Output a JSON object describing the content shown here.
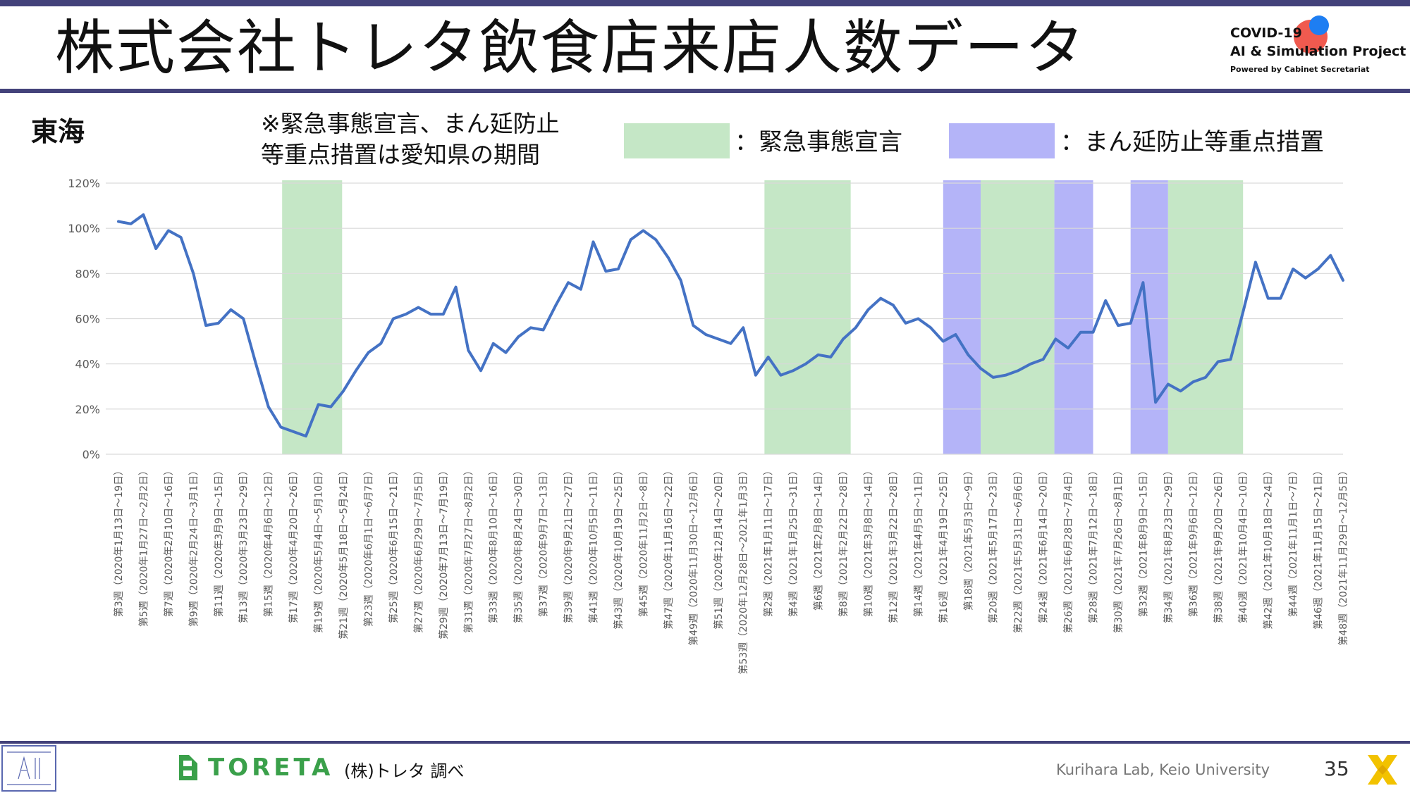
{
  "title": "株式会社トレタ飲食店来店人数データ",
  "logo": {
    "line1": "COVID-19",
    "line2": "AI & Simulation Project",
    "line3": "Powered by Cabinet Secretariat"
  },
  "region": "東海",
  "note": "※緊急事態宣言、まん延防止\n等重点措置は愛知県の期間",
  "legend": {
    "emergency_label": "：緊急事態宣言",
    "emergency_color": "#c5e7c6",
    "manen_label": "：まん延防止等重点措置",
    "manen_color": "#b4b4f8"
  },
  "footer": {
    "toreta": "TORETA",
    "source": "(株)トレタ 調べ",
    "lab": "Kurihara Lab, Keio University",
    "page": "35"
  },
  "chart_data": {
    "type": "line",
    "ylim": [
      0,
      120
    ],
    "yticks": [
      "0%",
      "20%",
      "40%",
      "60%",
      "80%",
      "100%",
      "120%"
    ],
    "line_color": "#4472c4",
    "grid": true,
    "x_labels": [
      "第3週（2020年1月13日～19日）",
      "第5週（2020年1月27日～2月2日）",
      "第7週（2020年2月10日～16日）",
      "第9週（2020年2月24日～3月1日）",
      "第11週（2020年3月9日～15日）",
      "第13週（2020年3月23日～29日）",
      "第15週（2020年4月6日～12日）",
      "第17週（2020年4月20日～26日）",
      "第19週（2020年5月4日～5月10日）",
      "第21週（2020年5月18日～5月24日）",
      "第23週（2020年6月1日～6月7日）",
      "第25週（2020年6月15日～21日）",
      "第27週（2020年6月29日～7月5日）",
      "第29週（2020年7月13日～7月19日）",
      "第31週（2020年7月27日～8月2日）",
      "第33週（2020年8月10日～16日）",
      "第35週（2020年8月24日～30日）",
      "第37週（2020年9月7日～13日）",
      "第39週（2020年9月21日～27日）",
      "第41週（2020年10月5日～11日）",
      "第43週（2020年10月19日～25日）",
      "第45週（2020年11月2日～8日）",
      "第47週（2020年11月16日～22日）",
      "第49週（2020年11月30日～12月6日）",
      "第51週（2020年12月14日～20日）",
      "第53週（2020年12月28日～2021年1月3日）",
      "第2週（2021年1月11日～17日）",
      "第4週（2021年1月25日～31日）",
      "第6週（2021年2月8日～14日）",
      "第8週（2021年2月22日～28日）",
      "第10週（2021年3月8日～14日）",
      "第12週（2021年3月22日～28日）",
      "第14週（2021年4月5日～11日）",
      "第16週（2021年4月19日～25日）",
      "第18週（2021年5月3日～9日）",
      "第20週（2021年5月17日～23日）",
      "第22週（2021年5月31日～6月6日）",
      "第24週（2021年6月14日～20日）",
      "第26週（2021年6月28日～7月4日）",
      "第28週（2021年7月12日～18日）",
      "第30週（2021年7月26日～8月1日）",
      "第32週（2021年8月9日～15日）",
      "第34週（2021年8月23日～29日）",
      "第36週（2021年9月6日～12日）",
      "第38週（2021年9月20日～26日）",
      "第40週（2021年10月4日～10日）",
      "第42週（2021年10月18日～24日）",
      "第44週（2021年11月1日～7日）",
      "第46週（2021年11月15日～21日）",
      "第48週（2021年11月29日～12月5日）"
    ],
    "values": [
      103,
      102,
      106,
      91,
      99,
      96,
      80,
      57,
      58,
      64,
      60,
      40,
      21,
      12,
      10,
      8,
      22,
      21,
      28,
      37,
      45,
      49,
      60,
      62,
      65,
      62,
      62,
      74,
      46,
      37,
      49,
      45,
      52,
      56,
      55,
      66,
      76,
      73,
      94,
      81,
      82,
      95,
      99,
      95,
      87,
      77,
      57,
      53,
      51,
      49,
      56,
      35,
      43,
      35,
      37,
      40,
      44,
      43,
      51,
      56,
      64,
      69,
      66,
      58,
      60,
      56,
      50,
      53,
      44,
      38,
      34,
      35,
      37,
      40,
      42,
      51,
      47,
      54,
      54,
      68,
      57,
      58,
      76,
      23,
      31,
      28,
      32,
      34,
      41,
      42,
      63,
      85,
      69,
      69,
      82,
      78,
      82,
      88,
      77
    ],
    "bands": [
      {
        "type": "emergency",
        "start": 13.1,
        "end": 17.9
      },
      {
        "type": "emergency",
        "start": 51.7,
        "end": 58.6
      },
      {
        "type": "manen",
        "start": 66.0,
        "end": 69.0
      },
      {
        "type": "emergency",
        "start": 69.0,
        "end": 74.9
      },
      {
        "type": "manen",
        "start": 74.9,
        "end": 78.0
      },
      {
        "type": "manen",
        "start": 81.0,
        "end": 84.0
      },
      {
        "type": "emergency",
        "start": 84.0,
        "end": 90.0
      }
    ]
  }
}
